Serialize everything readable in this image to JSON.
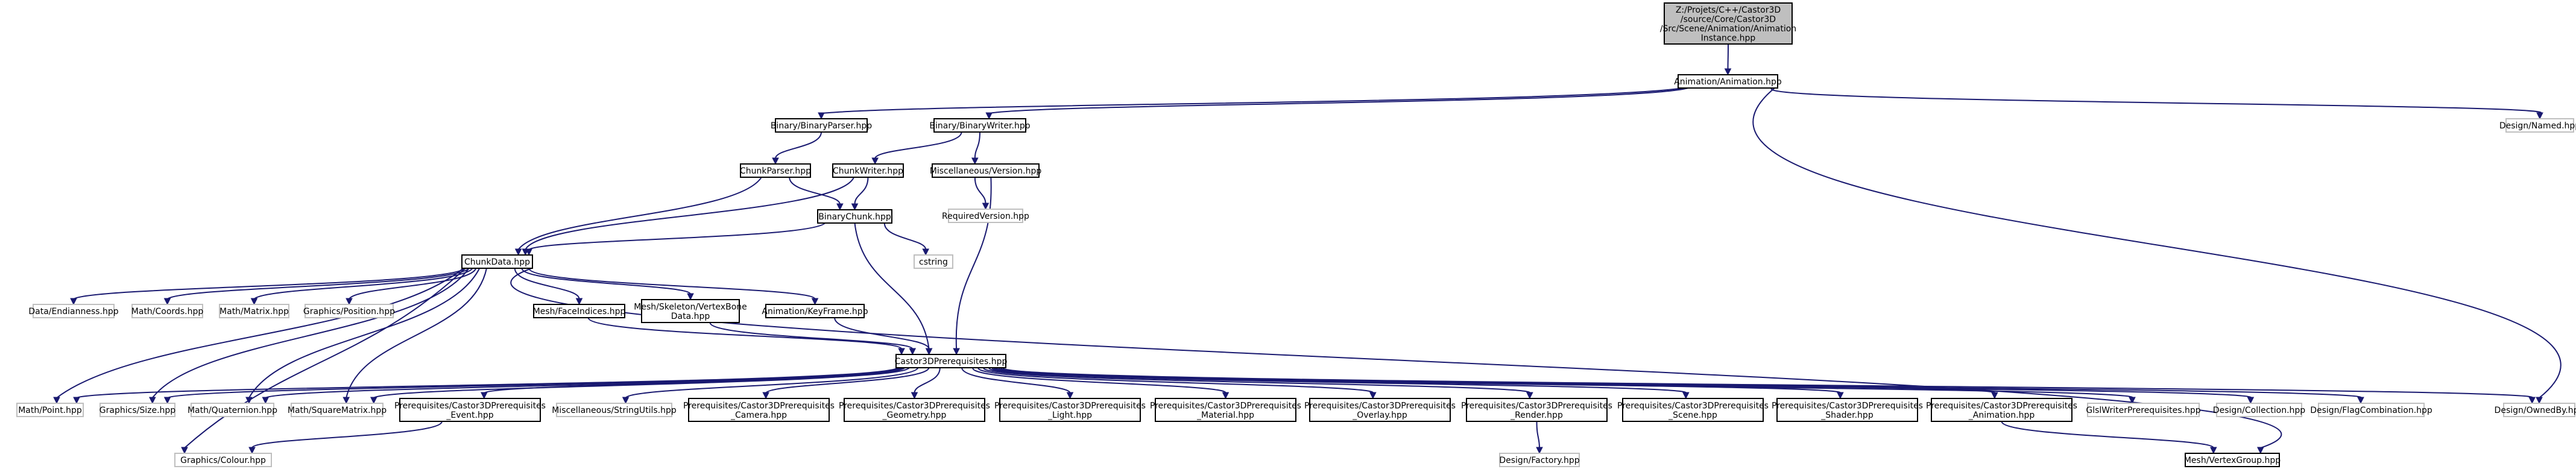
{
  "diagram": {
    "colors": {
      "edge": "#191970",
      "root_fill": "#bfbfbf",
      "box_stroke": "#000000",
      "external_stroke": "#bfbfbf"
    },
    "nodes": [
      {
        "id": "root",
        "lines": [
          "Z:/Projets/C++/Castor3D",
          "/source/Core/Castor3D",
          "/Src/Scene/Animation/Animation",
          "Instance.hpp"
        ],
        "style": "root"
      },
      {
        "id": "anim",
        "lines": [
          "Animation/Animation.hpp"
        ],
        "style": "box"
      },
      {
        "id": "bparser",
        "lines": [
          "Binary/BinaryParser.hpp"
        ],
        "style": "box"
      },
      {
        "id": "bwriter",
        "lines": [
          "Binary/BinaryWriter.hpp"
        ],
        "style": "box"
      },
      {
        "id": "named",
        "lines": [
          "Design/Named.hpp"
        ],
        "style": "ext"
      },
      {
        "id": "cparser",
        "lines": [
          "ChunkParser.hpp"
        ],
        "style": "box"
      },
      {
        "id": "cwriter",
        "lines": [
          "ChunkWriter.hpp"
        ],
        "style": "box"
      },
      {
        "id": "misc",
        "lines": [
          "Miscellaneous/Version.hpp"
        ],
        "style": "box"
      },
      {
        "id": "reqver",
        "lines": [
          "RequiredVersion.hpp"
        ],
        "style": "ext"
      },
      {
        "id": "bchunk",
        "lines": [
          "BinaryChunk.hpp"
        ],
        "style": "box"
      },
      {
        "id": "cstring",
        "lines": [
          "cstring"
        ],
        "style": "ext"
      },
      {
        "id": "cdata",
        "lines": [
          "ChunkData.hpp"
        ],
        "style": "box"
      },
      {
        "id": "endian",
        "lines": [
          "Data/Endianness.hpp"
        ],
        "style": "ext"
      },
      {
        "id": "coords",
        "lines": [
          "Math/Coords.hpp"
        ],
        "style": "ext"
      },
      {
        "id": "matrix",
        "lines": [
          "Math/Matrix.hpp"
        ],
        "style": "ext"
      },
      {
        "id": "gpos",
        "lines": [
          "Graphics/Position.hpp"
        ],
        "style": "ext"
      },
      {
        "id": "faceidx",
        "lines": [
          "Mesh/FaceIndices.hpp"
        ],
        "style": "box"
      },
      {
        "id": "vbone",
        "lines": [
          "Mesh/Skeleton/VertexBone",
          "Data.hpp"
        ],
        "style": "box"
      },
      {
        "id": "keyframe",
        "lines": [
          "Animation/KeyFrame.hpp"
        ],
        "style": "box"
      },
      {
        "id": "prereq",
        "lines": [
          "Castor3DPrerequisites.hpp"
        ],
        "style": "box"
      },
      {
        "id": "point",
        "lines": [
          "Math/Point.hpp"
        ],
        "style": "ext"
      },
      {
        "id": "gsize",
        "lines": [
          "Graphics/Size.hpp"
        ],
        "style": "ext"
      },
      {
        "id": "quat",
        "lines": [
          "Math/Quaternion.hpp"
        ],
        "style": "ext"
      },
      {
        "id": "sqmat",
        "lines": [
          "Math/SquareMatrix.hpp"
        ],
        "style": "ext"
      },
      {
        "id": "pevent",
        "lines": [
          "Prerequisites/Castor3DPrerequisites",
          "_Event.hpp"
        ],
        "style": "box"
      },
      {
        "id": "strutil",
        "lines": [
          "Miscellaneous/StringUtils.hpp"
        ],
        "style": "ext"
      },
      {
        "id": "pcamera",
        "lines": [
          "Prerequisites/Castor3DPrerequisites",
          "_Camera.hpp"
        ],
        "style": "box"
      },
      {
        "id": "pgeom",
        "lines": [
          "Prerequisites/Castor3DPrerequisites",
          "_Geometry.hpp"
        ],
        "style": "box"
      },
      {
        "id": "plight",
        "lines": [
          "Prerequisites/Castor3DPrerequisites",
          "_Light.hpp"
        ],
        "style": "box"
      },
      {
        "id": "pmat",
        "lines": [
          "Prerequisites/Castor3DPrerequisites",
          "_Material.hpp"
        ],
        "style": "box"
      },
      {
        "id": "poverlay",
        "lines": [
          "Prerequisites/Castor3DPrerequisites",
          "_Overlay.hpp"
        ],
        "style": "box"
      },
      {
        "id": "prender",
        "lines": [
          "Prerequisites/Castor3DPrerequisites",
          "_Render.hpp"
        ],
        "style": "box"
      },
      {
        "id": "pscene",
        "lines": [
          "Prerequisites/Castor3DPrerequisites",
          "_Scene.hpp"
        ],
        "style": "box"
      },
      {
        "id": "pshader",
        "lines": [
          "Prerequisites/Castor3DPrerequisites",
          "_Shader.hpp"
        ],
        "style": "box"
      },
      {
        "id": "panim",
        "lines": [
          "Prerequisites/Castor3DPrerequisites",
          "_Animation.hpp"
        ],
        "style": "box"
      },
      {
        "id": "glsl",
        "lines": [
          "GlslWriterPrerequisites.hpp"
        ],
        "style": "ext"
      },
      {
        "id": "coll",
        "lines": [
          "Design/Collection.hpp"
        ],
        "style": "ext"
      },
      {
        "id": "flagc",
        "lines": [
          "Design/FlagCombination.hpp"
        ],
        "style": "ext"
      },
      {
        "id": "owned",
        "lines": [
          "Design/OwnedBy.hpp"
        ],
        "style": "ext"
      },
      {
        "id": "colour",
        "lines": [
          "Graphics/Colour.hpp"
        ],
        "style": "ext"
      },
      {
        "id": "factory",
        "lines": [
          "Design/Factory.hpp"
        ],
        "style": "ext"
      },
      {
        "id": "vgroup",
        "lines": [
          "Mesh/VertexGroup.hpp"
        ],
        "style": "box"
      }
    ]
  }
}
